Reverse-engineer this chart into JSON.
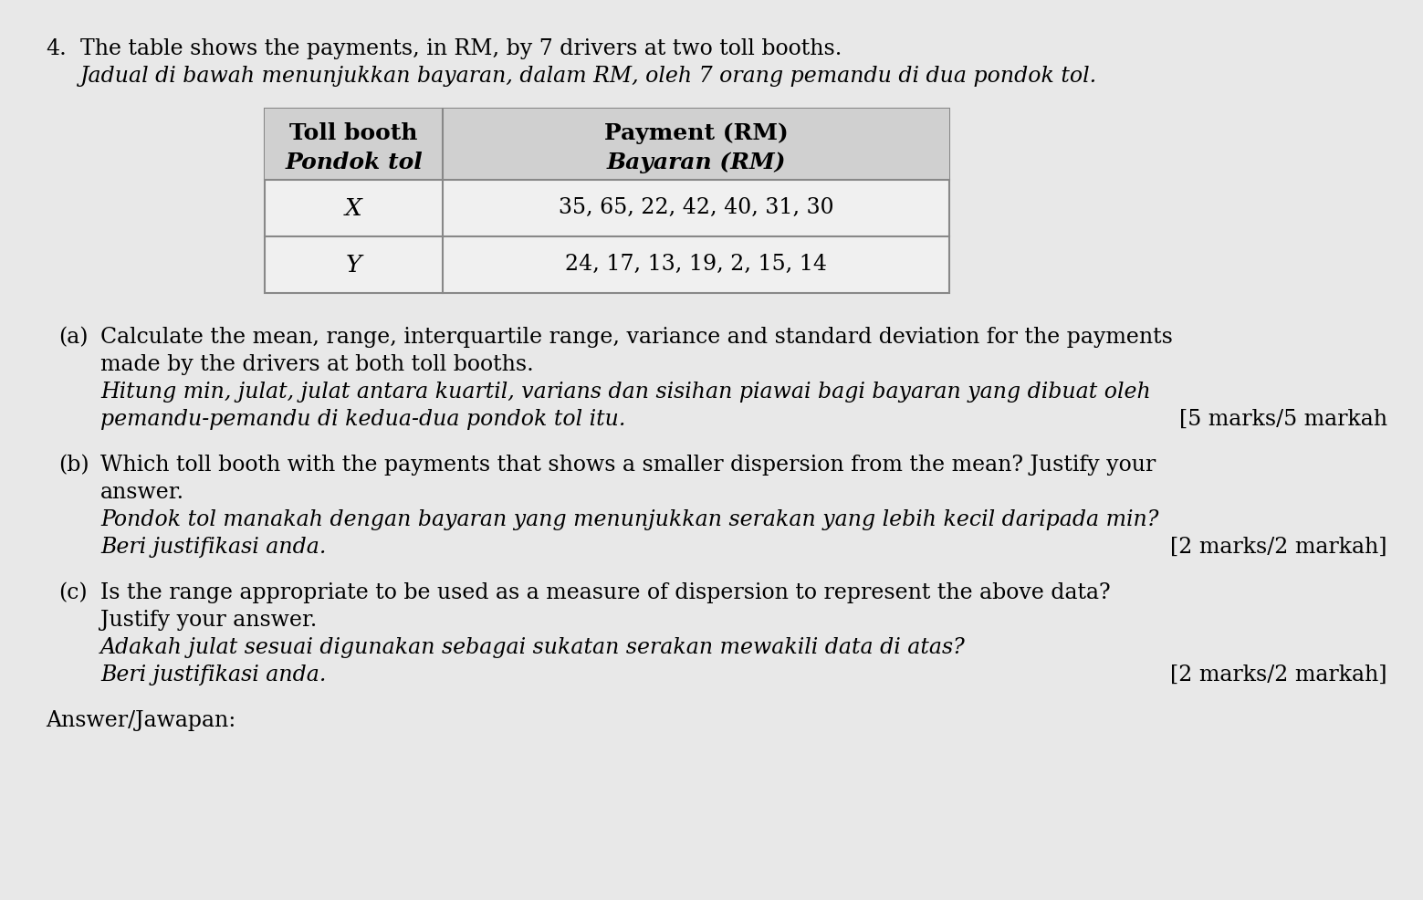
{
  "background_color": "#e8e8e8",
  "table_header_bg": "#d0d0d0",
  "table_cell_bg": "#f0f0f0",
  "question_number": "4.",
  "title_en": "The table shows the payments, in RM, by 7 drivers at two toll booths.",
  "title_my": "Jadual di bawah menunjukkan bayaran, dalam RM, oleh 7 orang pemandu di dua pondok tol.",
  "table_header_col1_en": "Toll booth",
  "table_header_col1_my": "Pondok tol",
  "table_header_col2_en": "Payment (RM)",
  "table_header_col2_my": "Bayaran (RM)",
  "table_row1_col1": "X",
  "table_row1_col2": "35, 65, 22, 42, 40, 31, 30",
  "table_row2_col1": "Y",
  "table_row2_col2": "24, 17, 13, 19, 2, 15, 14",
  "part_a_label": "(a)",
  "part_a_en1": "Calculate the mean, range, interquartile range, variance and standard deviation for the payments",
  "part_a_en2": "made by the drivers at both toll booths.",
  "part_a_my1": "Hitung min, julat, julat antara kuartil, varians dan sisihan piawai bagi bayaran yang dibuat oleh",
  "part_a_my2": "pemandu-pemandu di kedua-dua pondok tol itu.",
  "part_a_marks": "[5 marks/5 markah",
  "part_b_label": "(b)",
  "part_b_en1": "Which toll booth with the payments that shows a smaller dispersion from the mean? Justify your",
  "part_b_en2": "answer.",
  "part_b_my1": "Pondok tol manakah dengan bayaran yang menunjukkan serakan yang lebih kecil daripada min?",
  "part_b_my2": "Beri justifikasi anda.",
  "part_b_marks": "[2 marks/2 markah]",
  "part_c_label": "(c)",
  "part_c_en1": "Is the range appropriate to be used as a measure of dispersion to represent the above data?",
  "part_c_en2": "Justify your answer.",
  "part_c_my1": "Adakah julat sesuai digunakan sebagai sukatan serakan mewakili data di atas?",
  "part_c_my2": "Beri justifikasi anda.",
  "part_c_marks": "[2 marks/2 markah]",
  "answer_label": "Answer/Jawapan:"
}
